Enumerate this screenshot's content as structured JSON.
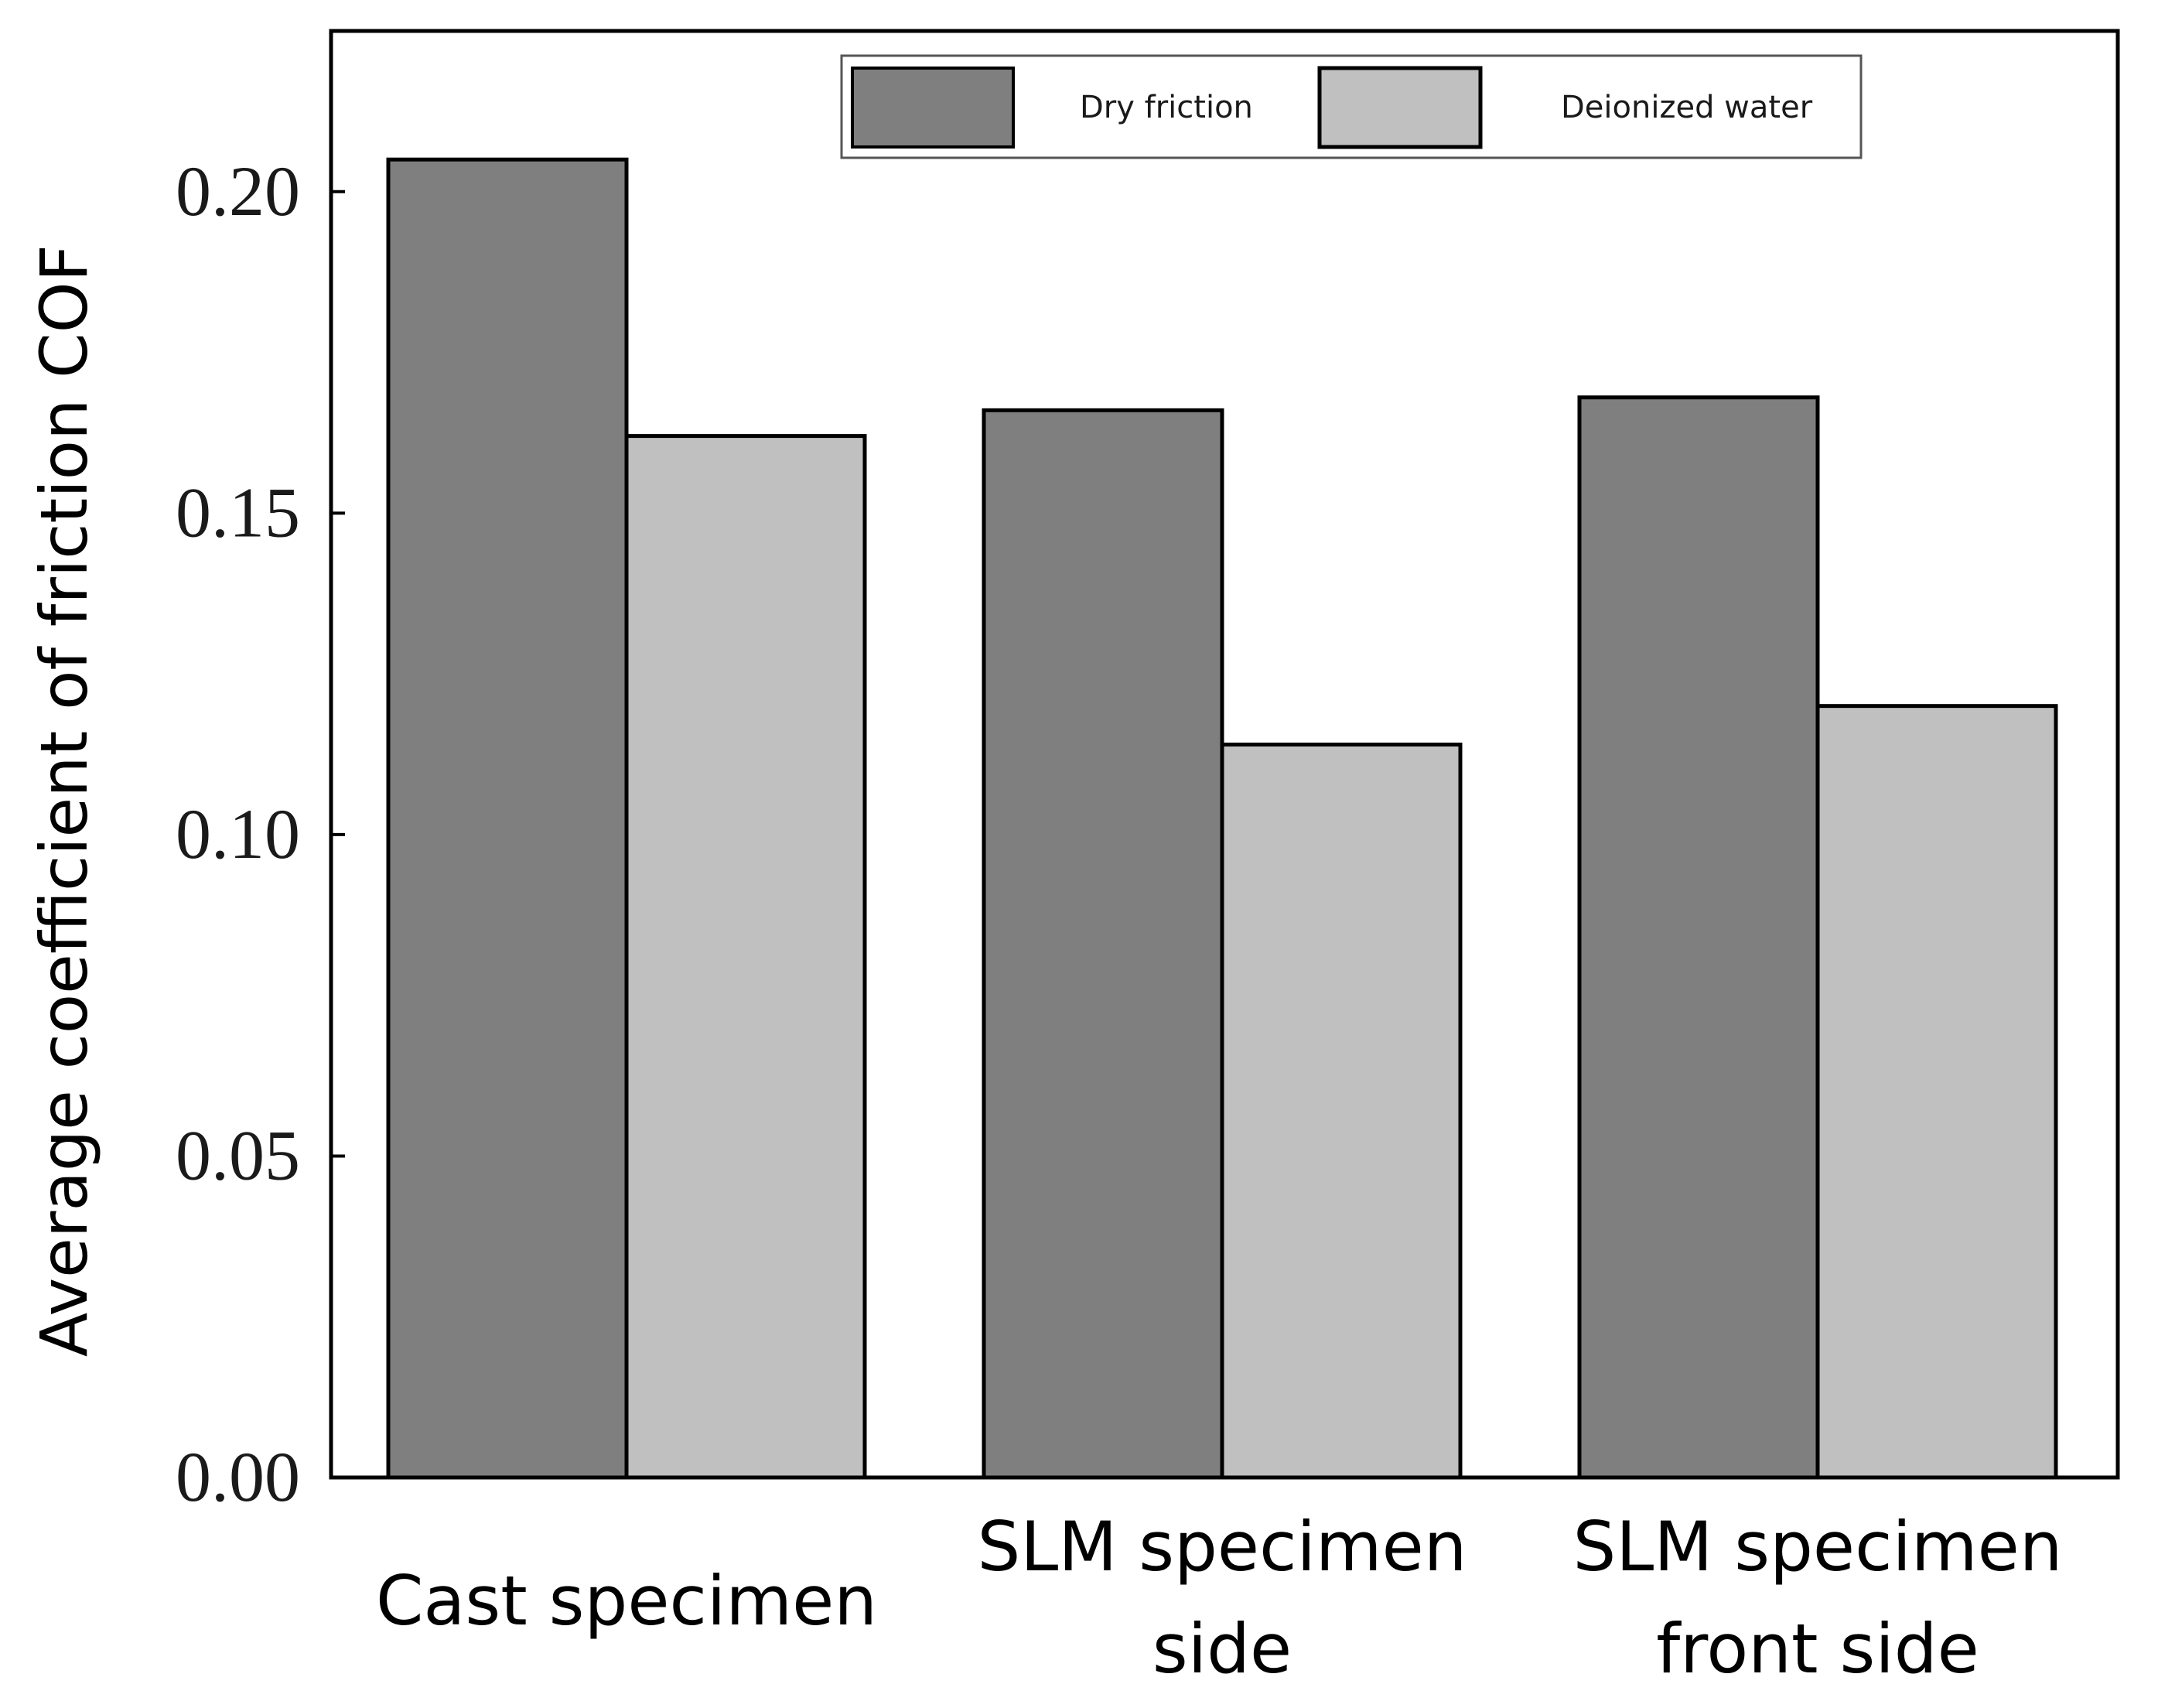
{
  "chart_data": {
    "type": "bar",
    "title": "",
    "xlabel": "",
    "ylabel": "Average coefficient of friction COF",
    "ylim": [
      0,
      0.225
    ],
    "yticks": [
      "0.00",
      "0.05",
      "0.10",
      "0.15",
      "0.20"
    ],
    "categories": [
      [
        "Cast specimen"
      ],
      [
        "SLM specimen",
        "side"
      ],
      [
        "SLM specimen",
        "front side"
      ]
    ],
    "series": [
      {
        "name": "Dry friction",
        "color": "#7f7f7f",
        "values": [
          0.205,
          0.166,
          0.168
        ]
      },
      {
        "name": "Deionized water",
        "color": "#c0c0c0",
        "values": [
          0.162,
          0.114,
          0.12
        ]
      }
    ],
    "legend_position": "top-center",
    "grid": false
  }
}
